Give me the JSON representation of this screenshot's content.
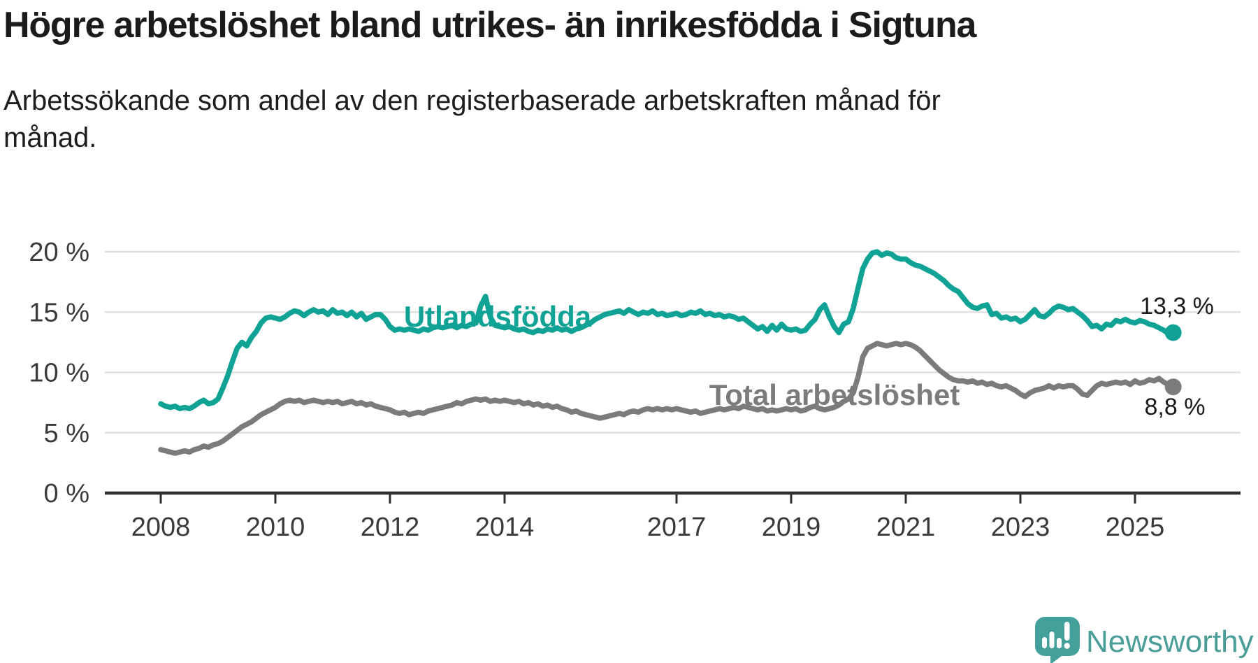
{
  "header": {
    "title": "Högre arbetslöshet bland utrikes- än inrikesfödda i Sigtuna",
    "subtitle": "Arbetssökande som andel av den registerbaserade arbetskraften månad för månad."
  },
  "chart_data": {
    "type": "line",
    "title": "Högre arbetslöshet bland utrikes- än inrikesfödda i Sigtuna",
    "subtitle": "Arbetssökande som andel av den registerbaserade arbetskraften månad för månad.",
    "unit": "%",
    "x_start_year": 2008,
    "x_resolution": "monthly",
    "xlim": [
      2007.0,
      2026.8
    ],
    "ylim": [
      0,
      21
    ],
    "grid": "horizontal",
    "y_ticks": [
      {
        "value": 0,
        "label": "0 %"
      },
      {
        "value": 5,
        "label": "5 %"
      },
      {
        "value": 10,
        "label": "10 %"
      },
      {
        "value": 15,
        "label": "15 %"
      },
      {
        "value": 20,
        "label": "20 %"
      }
    ],
    "x_ticks": [
      {
        "year": 2008,
        "label": "2008"
      },
      {
        "year": 2010,
        "label": "2010"
      },
      {
        "year": 2012,
        "label": "2012"
      },
      {
        "year": 2014,
        "label": "2014"
      },
      {
        "year": 2017,
        "label": "2017"
      },
      {
        "year": 2019,
        "label": "2019"
      },
      {
        "year": 2021,
        "label": "2021"
      },
      {
        "year": 2023,
        "label": "2023"
      },
      {
        "year": 2025,
        "label": "2025"
      }
    ],
    "series": [
      {
        "name": "Utlandsfödda",
        "color": "#10a294",
        "end_label": "13,3 %",
        "last_value": 13.3,
        "values": [
          7.4,
          7.2,
          7.1,
          7.2,
          7.0,
          7.1,
          7.0,
          7.2,
          7.5,
          7.7,
          7.4,
          7.5,
          7.8,
          8.7,
          9.7,
          10.9,
          12.0,
          12.5,
          12.2,
          12.9,
          13.4,
          14.1,
          14.5,
          14.6,
          14.5,
          14.4,
          14.6,
          14.9,
          15.1,
          15.0,
          14.7,
          15.0,
          15.2,
          15.0,
          15.1,
          14.8,
          15.2,
          14.9,
          15.0,
          14.7,
          15.0,
          14.6,
          14.9,
          14.4,
          14.6,
          14.8,
          14.8,
          14.4,
          13.8,
          13.5,
          13.6,
          13.5,
          13.6,
          13.5,
          13.4,
          13.6,
          13.5,
          13.7,
          13.8,
          13.7,
          13.8,
          13.9,
          13.7,
          13.9,
          13.8,
          14.0,
          14.1,
          15.5,
          16.3,
          14.6,
          13.9,
          13.8,
          13.7,
          13.8,
          13.6,
          13.5,
          13.6,
          13.4,
          13.3,
          13.5,
          13.4,
          13.6,
          13.5,
          13.7,
          13.5,
          13.6,
          13.4,
          13.6,
          13.7,
          13.9,
          14.1,
          14.4,
          14.6,
          14.8,
          14.9,
          15.0,
          15.1,
          14.9,
          15.2,
          15.0,
          14.8,
          15.0,
          14.9,
          15.1,
          14.8,
          14.9,
          14.7,
          14.8,
          14.9,
          14.7,
          14.8,
          15.0,
          14.9,
          15.1,
          14.8,
          14.9,
          14.7,
          14.8,
          14.6,
          14.7,
          14.6,
          14.4,
          14.5,
          14.2,
          13.9,
          13.6,
          13.8,
          13.4,
          13.9,
          13.5,
          14.0,
          13.6,
          13.5,
          13.6,
          13.4,
          13.5,
          14.0,
          14.4,
          15.2,
          15.6,
          14.6,
          13.8,
          13.3,
          14.0,
          14.2,
          15.3,
          17.0,
          18.6,
          19.4,
          19.9,
          20.0,
          19.7,
          19.9,
          19.8,
          19.5,
          19.4,
          19.4,
          19.1,
          18.9,
          18.8,
          18.6,
          18.4,
          18.2,
          17.9,
          17.6,
          17.2,
          16.9,
          16.7,
          16.2,
          15.7,
          15.4,
          15.3,
          15.5,
          15.6,
          14.8,
          14.9,
          14.5,
          14.6,
          14.4,
          14.5,
          14.2,
          14.4,
          14.8,
          15.2,
          14.7,
          14.6,
          14.9,
          15.3,
          15.5,
          15.4,
          15.2,
          15.3,
          15.0,
          14.7,
          14.3,
          13.8,
          13.9,
          13.6,
          14.0,
          13.9,
          14.3,
          14.2,
          14.4,
          14.2,
          14.1,
          14.3,
          14.2,
          14.0,
          13.9,
          13.7,
          13.5,
          13.2,
          13.3
        ]
      },
      {
        "name": "Total arbetslöshet",
        "color": "#7b7b7b",
        "end_label": "8,8 %",
        "last_value": 8.8,
        "values": [
          3.6,
          3.5,
          3.4,
          3.3,
          3.4,
          3.5,
          3.4,
          3.6,
          3.7,
          3.9,
          3.8,
          4.0,
          4.1,
          4.3,
          4.6,
          4.9,
          5.2,
          5.5,
          5.7,
          5.9,
          6.2,
          6.5,
          6.7,
          6.9,
          7.1,
          7.4,
          7.6,
          7.7,
          7.6,
          7.7,
          7.5,
          7.6,
          7.7,
          7.6,
          7.5,
          7.6,
          7.5,
          7.6,
          7.4,
          7.5,
          7.6,
          7.4,
          7.5,
          7.3,
          7.4,
          7.2,
          7.1,
          7.0,
          6.9,
          6.7,
          6.6,
          6.7,
          6.5,
          6.6,
          6.7,
          6.6,
          6.8,
          6.9,
          7.0,
          7.1,
          7.2,
          7.3,
          7.5,
          7.4,
          7.6,
          7.7,
          7.8,
          7.7,
          7.8,
          7.6,
          7.7,
          7.6,
          7.7,
          7.6,
          7.5,
          7.6,
          7.4,
          7.5,
          7.3,
          7.4,
          7.2,
          7.3,
          7.1,
          7.2,
          7.0,
          6.9,
          6.7,
          6.8,
          6.6,
          6.5,
          6.4,
          6.3,
          6.2,
          6.3,
          6.4,
          6.5,
          6.6,
          6.5,
          6.7,
          6.8,
          6.7,
          6.9,
          7.0,
          6.9,
          7.0,
          6.9,
          7.0,
          6.9,
          7.0,
          6.9,
          6.8,
          6.7,
          6.8,
          6.6,
          6.7,
          6.8,
          6.9,
          7.0,
          6.9,
          7.0,
          7.1,
          7.0,
          7.2,
          7.1,
          7.0,
          6.9,
          7.0,
          6.8,
          6.9,
          6.8,
          6.9,
          7.0,
          6.9,
          7.0,
          6.8,
          6.9,
          7.1,
          7.2,
          7.0,
          6.9,
          7.0,
          7.1,
          7.3,
          7.6,
          7.8,
          8.3,
          9.6,
          11.3,
          12.0,
          12.2,
          12.4,
          12.3,
          12.2,
          12.3,
          12.4,
          12.3,
          12.4,
          12.3,
          12.1,
          11.8,
          11.4,
          11.0,
          10.6,
          10.2,
          9.9,
          9.6,
          9.4,
          9.3,
          9.3,
          9.2,
          9.3,
          9.1,
          9.2,
          9.0,
          9.1,
          8.9,
          8.8,
          8.9,
          8.7,
          8.5,
          8.2,
          8.0,
          8.3,
          8.5,
          8.6,
          8.7,
          8.9,
          8.7,
          8.9,
          8.8,
          8.9,
          8.9,
          8.6,
          8.2,
          8.1,
          8.5,
          8.9,
          9.1,
          9.0,
          9.1,
          9.2,
          9.1,
          9.2,
          9.0,
          9.3,
          9.1,
          9.2,
          9.4,
          9.3,
          9.5,
          9.2,
          9.0,
          8.8
        ]
      }
    ],
    "legend_position": "inline-labels"
  },
  "colors": {
    "accent_teal": "#10a294",
    "series_gray": "#7b7b7b",
    "gridline": "#e1e1e1",
    "axis": "#2f2f2f",
    "tick_text": "#3a3a3a",
    "title_text": "#1b1b1b",
    "logo_teal": "#43a09a"
  },
  "branding": {
    "logo_text": "Newsworthy"
  }
}
